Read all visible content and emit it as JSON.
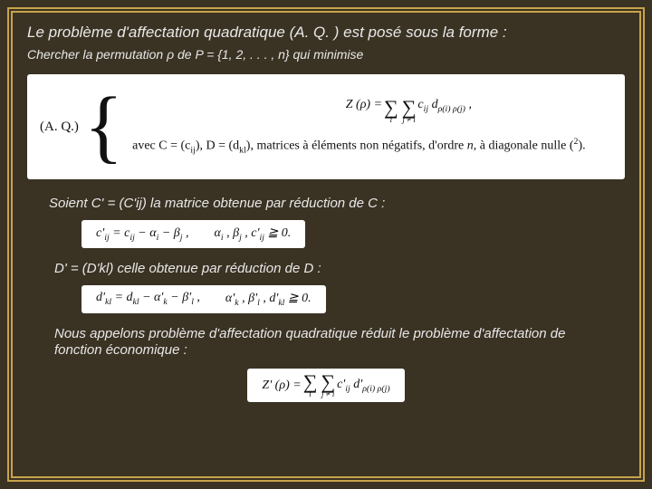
{
  "colors": {
    "page_bg": "#3a3223",
    "border": "#c7a34a",
    "text": "#e8e8e8",
    "eq_bg": "#ffffff",
    "eq_text": "#111111"
  },
  "title": "Le problème d'affectation quadratique (A. Q. ) est posé sous la forme :",
  "subtitle": "Chercher la permutation ρ de P = {1, 2, . . . , n} qui minimise",
  "eq1": {
    "left_label": "(A. Q.)",
    "z_lhs": "Z (ρ) =",
    "sum_outer_index": "i",
    "sum_inner_index": "j ≠ i",
    "z_term_html": "c<sub>ij</sub> d<sub>ρ(i) ρ(j)</sub> ,",
    "row2_html": "avec C = (c<sub>ij</sub>), D = (d<sub>kl</sub>), matrices à éléments non négatifs, d'ordre <i>n</i>, à diagonale nulle (<sup>2</sup>)."
  },
  "para_cprime": "Soient C' = (C'ij) la matrice obtenue par réduction de C :",
  "eq2": {
    "lhs_html": "c'<sub>ij</sub> = c<sub>ij</sub> − α<sub>i</sub> − β<sub>j</sub> ,",
    "rhs_html": "α<sub>i</sub> , β<sub>j</sub> , c'<sub>ij</sub> ≧ 0."
  },
  "para_dprime": "D' = (D'kl) celle obtenue par réduction de D :",
  "eq3": {
    "lhs_html": "d'<sub>kl</sub> = d<sub>kl</sub> − α'<sub>k</sub> − β'<sub>l</sub> ,",
    "rhs_html": "α'<sub>k</sub> , β'<sub>l</sub> , d'<sub>kl</sub> ≧ 0."
  },
  "para_reduit": "Nous appelons problème d'affectation quadratique réduit le problème d'affectation de fonction économique :",
  "eq4": {
    "z_lhs": "Z' (ρ) =",
    "sum_outer_index": "i",
    "sum_inner_index": "j ≠ i",
    "term_html": "c'<sub>ij</sub> d'<sub>ρ(i) ρ(j)</sub>"
  }
}
